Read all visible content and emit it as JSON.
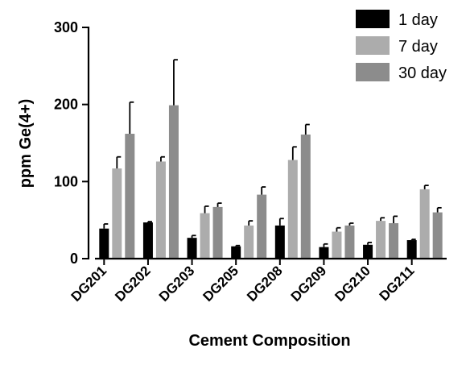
{
  "chart_data": {
    "type": "bar",
    "title": "",
    "xlabel": "Cement Composition",
    "ylabel": "ppm Ge(4+)",
    "ylim": [
      0,
      300
    ],
    "yticks": [
      0,
      100,
      200,
      300
    ],
    "categories": [
      "DG201",
      "DG202",
      "DG203",
      "DG205",
      "DG208",
      "DG209",
      "DG210",
      "DG211"
    ],
    "series": [
      {
        "name": "1 day",
        "color": "#000000",
        "values": [
          39,
          47,
          27,
          16,
          43,
          15,
          18,
          24
        ],
        "errors": [
          6,
          1,
          3,
          1,
          9,
          4,
          3,
          1
        ]
      },
      {
        "name": "7 day",
        "color": "#acacac",
        "values": [
          117,
          126,
          59,
          43,
          128,
          35,
          49,
          90
        ],
        "errors": [
          15,
          6,
          9,
          6,
          17,
          5,
          4,
          5
        ]
      },
      {
        "name": "30 day",
        "color": "#8c8c8c",
        "values": [
          162,
          199,
          67,
          83,
          161,
          43,
          46,
          60
        ],
        "errors": [
          41,
          59,
          5,
          10,
          13,
          3,
          9,
          6
        ]
      }
    ],
    "legend_position": "top-right",
    "grid": false
  }
}
